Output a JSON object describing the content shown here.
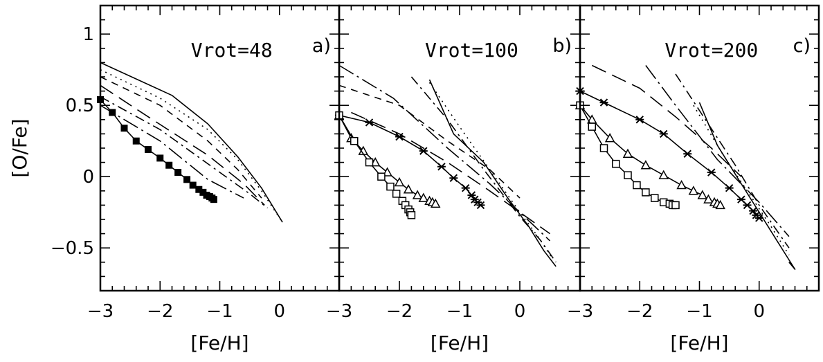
{
  "chart_data": {
    "type": "line",
    "ylabel": "[O/Fe]",
    "xlabel": "[Fe/H]",
    "xlim": [
      -3,
      1
    ],
    "ylim": [
      -0.8,
      1.2
    ],
    "xticks": [
      -3,
      -2,
      -1,
      0
    ],
    "xtick_labels": [
      "−3",
      "−2",
      "−1",
      "0"
    ],
    "yticks": [
      -0.5,
      0,
      0.5,
      1
    ],
    "ytick_labels": [
      "−0.5",
      "0",
      "0.5",
      "1"
    ],
    "grid": false,
    "panels": [
      {
        "label": "a)",
        "title": "Vrot=48",
        "series": [
          {
            "style": "solid",
            "x": [
              -3,
              -1.8,
              -1.2,
              -0.7,
              -0.3,
              0.05
            ],
            "y": [
              0.8,
              0.57,
              0.37,
              0.14,
              -0.08,
              -0.32
            ]
          },
          {
            "style": "dotted",
            "x": [
              -3,
              -2,
              -1.2,
              -0.7,
              -0.3,
              0.05
            ],
            "y": [
              0.75,
              0.55,
              0.33,
              0.12,
              -0.1,
              -0.32
            ]
          },
          {
            "style": "dashed",
            "x": [
              -3,
              -2,
              -1.2,
              -0.7,
              -0.3
            ],
            "y": [
              0.7,
              0.5,
              0.25,
              0.05,
              -0.15
            ]
          },
          {
            "style": "longdash",
            "x": [
              -3,
              -2.2,
              -1.2,
              -0.6,
              -0.25
            ],
            "y": [
              0.64,
              0.42,
              0.15,
              -0.05,
              -0.2
            ]
          },
          {
            "style": "dashdot",
            "x": [
              -3,
              -2,
              -1.1,
              -0.5,
              -0.2
            ],
            "y": [
              0.56,
              0.33,
              0.06,
              -0.12,
              -0.22
            ]
          },
          {
            "style": "longdashdot",
            "x": [
              -3,
              -2,
              -1.2,
              -0.6
            ],
            "y": [
              0.5,
              0.25,
              -0.02,
              -0.15
            ]
          },
          {
            "style": "solid",
            "marker": "filled-square",
            "x": [
              -3,
              -2.8,
              -2.6,
              -2.4,
              -2.2,
              -2.0,
              -1.85,
              -1.7,
              -1.55,
              -1.45,
              -1.35,
              -1.28,
              -1.22,
              -1.17,
              -1.13,
              -1.1
            ],
            "y": [
              0.54,
              0.45,
              0.34,
              0.25,
              0.19,
              0.13,
              0.08,
              0.03,
              -0.02,
              -0.06,
              -0.09,
              -0.11,
              -0.13,
              -0.14,
              -0.15,
              -0.16
            ]
          }
        ]
      },
      {
        "label": "b)",
        "title": "Vrot=100",
        "series": [
          {
            "style": "solid",
            "x": [
              -1.5,
              -1.1,
              -0.6,
              -0.2,
              0.15,
              0.4,
              0.6
            ],
            "y": [
              0.68,
              0.3,
              0.1,
              -0.15,
              -0.35,
              -0.52,
              -0.63
            ]
          },
          {
            "style": "dotted",
            "x": [
              -1.5,
              -1.0,
              -0.5,
              0.0,
              0.3,
              0.55
            ],
            "y": [
              0.66,
              0.35,
              0.05,
              -0.25,
              -0.42,
              -0.58
            ]
          },
          {
            "style": "dashdot",
            "x": [
              -1.8,
              -1.2,
              -0.6,
              0.0,
              0.35,
              0.6
            ],
            "y": [
              0.7,
              0.4,
              0.05,
              -0.28,
              -0.45,
              -0.6
            ]
          },
          {
            "style": "longdashdot",
            "x": [
              -3,
              -2.1,
              -1.2,
              -0.5,
              0.0,
              0.5
            ],
            "y": [
              0.78,
              0.55,
              0.2,
              -0.05,
              -0.25,
              -0.45
            ]
          },
          {
            "style": "dashed",
            "x": [
              -3,
              -2,
              -1.2,
              -0.5,
              0.0
            ],
            "y": [
              0.64,
              0.5,
              0.25,
              0.05,
              -0.15
            ]
          },
          {
            "style": "longdash",
            "x": [
              -2.8,
              -2.0,
              -1.2,
              -0.5,
              0.0,
              0.5
            ],
            "y": [
              0.45,
              0.3,
              0.1,
              -0.1,
              -0.25,
              -0.4
            ]
          },
          {
            "style": "solid",
            "marker": "star",
            "x": [
              -3,
              -2.5,
              -2.0,
              -1.6,
              -1.3,
              -1.1,
              -0.9,
              -0.8,
              -0.75,
              -0.7,
              -0.65
            ],
            "y": [
              0.43,
              0.38,
              0.28,
              0.18,
              0.07,
              -0.01,
              -0.08,
              -0.13,
              -0.16,
              -0.18,
              -0.2
            ]
          },
          {
            "style": "solid",
            "marker": "triangle",
            "x": [
              -3,
              -2.8,
              -2.6,
              -2.4,
              -2.2,
              -2.0,
              -1.85,
              -1.7,
              -1.6,
              -1.5,
              -1.45,
              -1.4
            ],
            "y": [
              0.43,
              0.27,
              0.18,
              0.1,
              0.03,
              -0.04,
              -0.09,
              -0.13,
              -0.15,
              -0.17,
              -0.18,
              -0.19
            ]
          },
          {
            "style": "solid",
            "marker": "square",
            "x": [
              -3,
              -2.75,
              -2.5,
              -2.3,
              -2.15,
              -2.05,
              -1.95,
              -1.9,
              -1.85,
              -1.82,
              -1.8
            ],
            "y": [
              0.43,
              0.25,
              0.1,
              0.0,
              -0.07,
              -0.12,
              -0.17,
              -0.2,
              -0.23,
              -0.25,
              -0.27
            ]
          }
        ]
      },
      {
        "label": "c)",
        "title": "Vrot=200",
        "series": [
          {
            "style": "solid",
            "x": [
              -1.0,
              -0.7,
              -0.3,
              0.0,
              0.3,
              0.6,
              0.5
            ],
            "y": [
              0.52,
              0.22,
              -0.05,
              -0.25,
              -0.45,
              -0.65,
              -0.6
            ]
          },
          {
            "style": "dotted",
            "x": [
              -1.1,
              -0.6,
              -0.2,
              0.2,
              0.5
            ],
            "y": [
              0.5,
              0.15,
              -0.1,
              -0.35,
              -0.55
            ]
          },
          {
            "style": "dashdot",
            "x": [
              -1.4,
              -0.9,
              -0.4,
              0.0,
              0.5
            ],
            "y": [
              0.72,
              0.4,
              0.08,
              -0.2,
              -0.5
            ]
          },
          {
            "style": "longdashdot",
            "x": [
              -1.9,
              -1.4,
              -0.7,
              0.0,
              0.5
            ],
            "y": [
              0.78,
              0.5,
              0.12,
              -0.18,
              -0.42
            ]
          },
          {
            "style": "longdash",
            "x": [
              -2.8,
              -2.0,
              -1.4,
              -0.8,
              -0.3
            ],
            "y": [
              0.78,
              0.62,
              0.42,
              0.2,
              0.0
            ]
          },
          {
            "style": "solid",
            "marker": "star",
            "x": [
              -3,
              -2.6,
              -2.0,
              -1.6,
              -1.2,
              -0.8,
              -0.5,
              -0.3,
              -0.2,
              -0.1,
              -0.05,
              0.0
            ],
            "y": [
              0.6,
              0.52,
              0.4,
              0.3,
              0.16,
              0.03,
              -0.08,
              -0.16,
              -0.2,
              -0.24,
              -0.27,
              -0.29
            ]
          },
          {
            "style": "solid",
            "marker": "triangle",
            "x": [
              -3,
              -2.8,
              -2.5,
              -2.2,
              -1.9,
              -1.6,
              -1.3,
              -1.1,
              -0.95,
              -0.85,
              -0.75,
              -0.7,
              -0.65
            ],
            "y": [
              0.5,
              0.4,
              0.27,
              0.16,
              0.08,
              0.01,
              -0.06,
              -0.1,
              -0.13,
              -0.16,
              -0.18,
              -0.19,
              -0.2
            ]
          },
          {
            "style": "solid",
            "marker": "square",
            "x": [
              -3,
              -2.8,
              -2.6,
              -2.4,
              -2.2,
              -2.05,
              -1.9,
              -1.75,
              -1.6,
              -1.5,
              -1.45,
              -1.4
            ],
            "y": [
              0.5,
              0.35,
              0.2,
              0.09,
              0.01,
              -0.06,
              -0.11,
              -0.15,
              -0.18,
              -0.19,
              -0.2,
              -0.2
            ]
          }
        ]
      }
    ]
  }
}
